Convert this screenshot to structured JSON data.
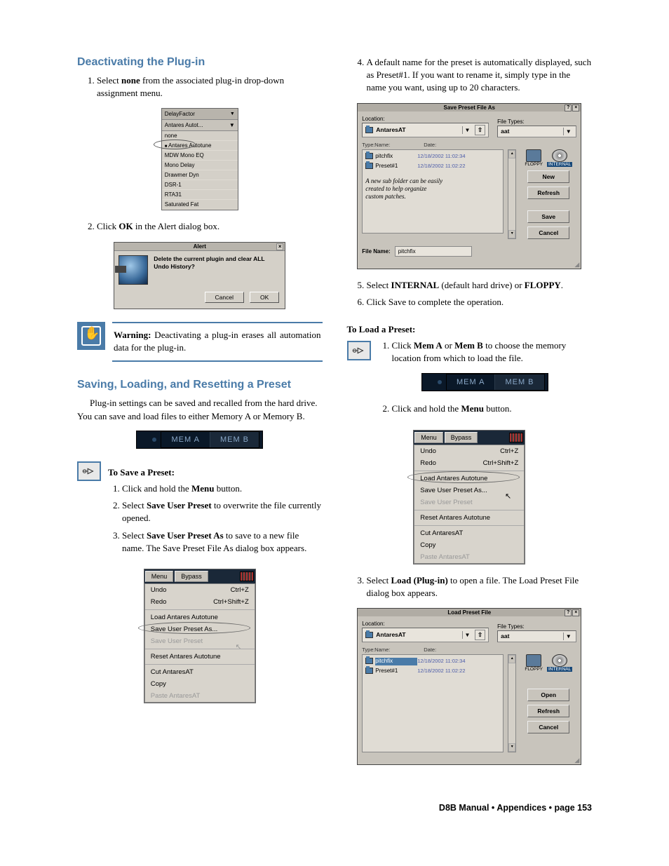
{
  "colors": {
    "heading_blue": "#4a7ba8",
    "dialog_bg": "#c8c4bc",
    "memab_bg": "#0a1828",
    "memab_text": "#8aa8c8"
  },
  "left": {
    "h_deactivate": "Deactivating the Plug-in",
    "step1_a": "Select ",
    "step1_b": "none",
    "step1_c": " from the associated plug-in drop-down assignment menu.",
    "dropdown": {
      "header": "DelayFactor",
      "selected": "Antares Autot...",
      "items": [
        "none",
        "Antares Autotune",
        "MDW Mono EQ",
        "Mono Delay",
        "Drawmer Dyn",
        "DSR-1",
        "RTA31",
        "Saturated Fat"
      ]
    },
    "step2_a": "Click ",
    "step2_b": "OK",
    "step2_c": " in the Alert dialog box.",
    "alert": {
      "title": "Alert",
      "msg": "Delete the current plugin and clear ALL Undo History?",
      "cancel": "Cancel",
      "ok": "OK"
    },
    "warn_label": "Warning:",
    "warn_text": " Deactivating a plug-in erases all automation data for the plug-in.",
    "h_saving": "Saving, Loading, and Resetting a Preset",
    "p_saving": "Plug-in settings can be saved and recalled from the hard drive. You can save and load files to either Memory A or Memory B.",
    "memab_a": "MEM A",
    "memab_b": "MEM B",
    "sub_save": "To Save a Preset:",
    "save1_a": "Click and hold the ",
    "save1_b": "Menu",
    "save1_c": " button.",
    "save2_a": "Select ",
    "save2_b": "Save User Preset",
    "save2_c": " to overwrite the file currently opened.",
    "save3_a": "Select ",
    "save3_b": "Save User Preset As",
    "save3_c": " to save to a new file name. The Save Preset File As dialog box appears.",
    "menu": {
      "menu_btn": "Menu",
      "bypass_btn": "Bypass",
      "items": [
        {
          "l": "Undo",
          "r": "Ctrl+Z"
        },
        {
          "l": "Redo",
          "r": "Ctrl+Shift+Z"
        },
        {
          "sep": true
        },
        {
          "l": "Load Antares Autotune"
        },
        {
          "l": "Save User Preset As...",
          "circled": true
        },
        {
          "l": "Save User Preset",
          "dim": true,
          "cursor": true
        },
        {
          "sep": true
        },
        {
          "l": "Reset Antares Autotune"
        },
        {
          "sep": true
        },
        {
          "l": "Cut AntaresAT"
        },
        {
          "l": "Copy"
        },
        {
          "l": "Paste AntaresAT",
          "dim": true
        }
      ]
    }
  },
  "right": {
    "step4": "A default name for the preset is automatically displayed, such as Preset#1. If you want to rename it, simply type in the name you want, using up to 20 characters.",
    "save_dlg": {
      "title": "Save Preset File As",
      "loc_label": "Location:",
      "loc_value": "AntaresAT",
      "ft_label": "File Types:",
      "ft_value": "aat",
      "col_type": "Type:",
      "col_name": "Name:",
      "col_date": "Date:",
      "files": [
        {
          "name": "pitchfix",
          "date": "12/18/2002  11:02:34"
        },
        {
          "name": "Preset#1",
          "date": "12/18/2002  11:02:22"
        }
      ],
      "annot": "A new sub folder can be easily created to help organize custom patches.",
      "drive_floppy": "FLOPPY",
      "drive_internal": "INTERNAL",
      "btn_new": "New",
      "btn_refresh": "Refresh",
      "btn_save": "Save",
      "btn_cancel": "Cancel",
      "fname_label": "File Name:",
      "fname_value": "pitchfix"
    },
    "step5_a": "Select ",
    "step5_b": "INTERNAL",
    "step5_c": " (default hard drive) or ",
    "step5_d": "FLOPPY",
    "step5_e": ".",
    "step6": "Click Save to complete the operation.",
    "sub_load": "To Load a Preset:",
    "load1_a": "Click ",
    "load1_b": "Mem A",
    "load1_c": " or ",
    "load1_d": "Mem B",
    "load1_e": " to choose the memory location from which to load the file.",
    "load2_a": "Click and hold the ",
    "load2_b": "Menu",
    "load2_c": " button.",
    "menu2": {
      "items": [
        {
          "l": "Undo",
          "r": "Ctrl+Z"
        },
        {
          "l": "Redo",
          "r": "Ctrl+Shift+Z"
        },
        {
          "sep": true
        },
        {
          "l": "Load Antares Autotune",
          "circled": true
        },
        {
          "l": "Save User Preset As...",
          "cursor": true
        },
        {
          "l": "Save User Preset",
          "dim": true
        },
        {
          "sep": true
        },
        {
          "l": "Reset Antares Autotune"
        },
        {
          "sep": true
        },
        {
          "l": "Cut AntaresAT"
        },
        {
          "l": "Copy"
        },
        {
          "l": "Paste AntaresAT",
          "dim": true
        }
      ]
    },
    "step3load_a": "Select ",
    "step3load_b": "Load (Plug-in)",
    "step3load_c": " to open a file. The Load Preset File dialog box appears.",
    "load_dlg": {
      "title": "Load Preset File",
      "btn_open": "Open",
      "btn_refresh": "Refresh",
      "btn_cancel": "Cancel"
    }
  },
  "footer": "D8B Manual • Appendices • page  153"
}
